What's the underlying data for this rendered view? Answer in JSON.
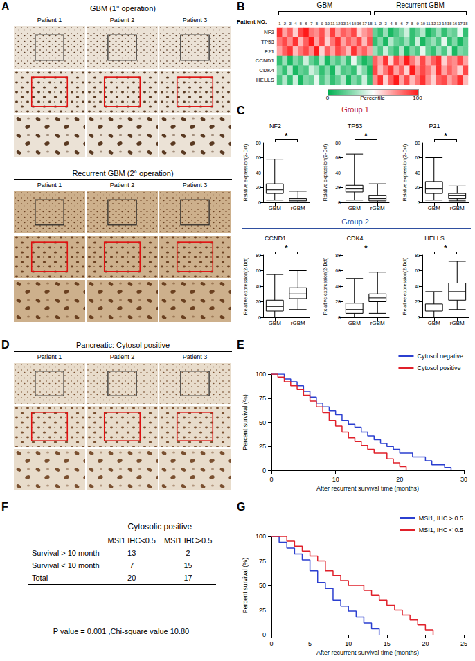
{
  "panel_labels": [
    "A",
    "B",
    "C",
    "D",
    "E",
    "F",
    "G"
  ],
  "panel_A": {
    "sections": [
      {
        "title": "GBM (1° operation)",
        "patients": [
          "Patient 1",
          "Patient 2",
          "Patient 3"
        ]
      },
      {
        "title": "Recurrent GBM (2° operation)",
        "patients": [
          "Patient 1",
          "Patient 2",
          "Patient 3"
        ]
      }
    ]
  },
  "panel_C_groups": [
    {
      "label": "Group 1",
      "color": "#c0202a"
    },
    {
      "label": "Group 2",
      "color": "#2f4fa0"
    }
  ],
  "panel_D": {
    "title": "Pancreatic: Cytosol positive",
    "patients": [
      "Patient 1",
      "Patient 2",
      "Patient 3"
    ]
  },
  "panel_F": {
    "title": "Cytosolic positive",
    "columns": [
      "MSI1 IHC<0.5",
      "MSI1 IHC>0.5"
    ],
    "rows": [
      {
        "label": "Survival > 10 month",
        "cells": [
          13,
          2
        ]
      },
      {
        "label": "Survival < 10 month",
        "cells": [
          7,
          15
        ]
      },
      {
        "label": "Total",
        "cells": [
          20,
          17
        ]
      }
    ],
    "footer": "P value = 0.001 ,Chi-square value 10.80"
  },
  "chart_data": [
    {
      "type": "heatmap",
      "row_label": "Patient NO.",
      "column_groups": [
        "GBM",
        "Recurrent GBM"
      ],
      "categories": [
        "1",
        "2",
        "3",
        "4",
        "5",
        "6",
        "7",
        "8",
        "9",
        "10",
        "11",
        "12",
        "13",
        "14",
        "15",
        "16",
        "17",
        "18",
        "1",
        "2",
        "3",
        "4",
        "5",
        "6",
        "7",
        "8",
        "9",
        "10",
        "11",
        "12",
        "13",
        "14",
        "15",
        "16",
        "17",
        "18"
      ],
      "rows": [
        "NF2",
        "TP53",
        "P21",
        "CCND1",
        "CDK4",
        "HELLS"
      ],
      "cells": [
        [
          95,
          70,
          85,
          60,
          90,
          100,
          80,
          75,
          88,
          65,
          92,
          70,
          85,
          78,
          90,
          60,
          72,
          80,
          20,
          10,
          30,
          5,
          15,
          25,
          40,
          10,
          20,
          35,
          5,
          15,
          30,
          10,
          25,
          20,
          45,
          10
        ],
        [
          80,
          90,
          75,
          95,
          65,
          85,
          100,
          70,
          90,
          60,
          80,
          95,
          70,
          85,
          75,
          90,
          65,
          88,
          10,
          25,
          5,
          35,
          20,
          15,
          30,
          10,
          40,
          5,
          20,
          30,
          15,
          45,
          10,
          25,
          5,
          20
        ],
        [
          70,
          85,
          95,
          65,
          80,
          90,
          75,
          100,
          60,
          85,
          70,
          90,
          80,
          65,
          95,
          75,
          85,
          70,
          30,
          15,
          40,
          20,
          10,
          35,
          5,
          25,
          15,
          45,
          20,
          10,
          30,
          15,
          40,
          5,
          25,
          20
        ],
        [
          10,
          30,
          5,
          25,
          15,
          40,
          20,
          10,
          35,
          5,
          25,
          15,
          30,
          10,
          45,
          20,
          5,
          15,
          85,
          70,
          95,
          60,
          90,
          75,
          100,
          80,
          65,
          90,
          70,
          85,
          95,
          60,
          80,
          75,
          90,
          70
        ],
        [
          25,
          10,
          35,
          5,
          20,
          15,
          40,
          30,
          10,
          25,
          5,
          35,
          15,
          20,
          10,
          40,
          25,
          5,
          90,
          65,
          80,
          95,
          70,
          85,
          60,
          100,
          75,
          90,
          80,
          65,
          95,
          70,
          85,
          75,
          60,
          90
        ],
        [
          15,
          35,
          10,
          40,
          5,
          25,
          20,
          45,
          15,
          30,
          10,
          20,
          35,
          5,
          25,
          15,
          40,
          10,
          75,
          95,
          60,
          85,
          100,
          70,
          90,
          65,
          80,
          95,
          75,
          60,
          85,
          90,
          70,
          80,
          95,
          65
        ]
      ],
      "colorbar": {
        "label": "Percentile",
        "range": [
          0,
          100
        ],
        "ticks": [
          0,
          100
        ]
      }
    },
    {
      "type": "boxplot",
      "title": "NF2",
      "ylabel": "Relative expression(2-Dct)",
      "categories": [
        "GBM",
        "rGBM"
      ],
      "values": [
        [
          3,
          12,
          17,
          25,
          58
        ],
        [
          0,
          2,
          3,
          5,
          15
        ]
      ],
      "ylim": [
        0,
        80
      ],
      "yticks": [
        0,
        20,
        40,
        60,
        80
      ],
      "annotations": [
        "*"
      ]
    },
    {
      "type": "boxplot",
      "title": "TP53",
      "ylabel": "Relative expression(2-Dct)",
      "categories": [
        "GBM",
        "rGBM"
      ],
      "values": [
        [
          3,
          14,
          18,
          23,
          65
        ],
        [
          0,
          2,
          5,
          9,
          25
        ]
      ],
      "ylim": [
        0,
        80
      ],
      "yticks": [
        0,
        20,
        40,
        60,
        80
      ],
      "annotations": [
        "*"
      ]
    },
    {
      "type": "boxplot",
      "title": "P21",
      "ylabel": "Relative expression(2-Dct)",
      "categories": [
        "GBM",
        "rGBM"
      ],
      "values": [
        [
          3,
          12,
          18,
          28,
          60
        ],
        [
          2,
          5,
          9,
          12,
          22
        ]
      ],
      "ylim": [
        0,
        80
      ],
      "yticks": [
        0,
        20,
        40,
        60,
        80
      ],
      "annotations": [
        "*"
      ]
    },
    {
      "type": "boxplot",
      "title": "CCND1",
      "ylabel": "Relative expression(2-Dct)",
      "categories": [
        "GBM",
        "rGBM"
      ],
      "values": [
        [
          0,
          8,
          14,
          22,
          55
        ],
        [
          10,
          24,
          30,
          38,
          60
        ]
      ],
      "ylim": [
        0,
        80
      ],
      "yticks": [
        0,
        20,
        40,
        60,
        80
      ],
      "annotations": [
        "*"
      ]
    },
    {
      "type": "boxplot",
      "title": "CDK4",
      "ylabel": "Relative expression(2-Dct)",
      "categories": [
        "GBM",
        "rGBM"
      ],
      "values": [
        [
          0,
          5,
          10,
          18,
          50
        ],
        [
          5,
          20,
          25,
          30,
          58
        ]
      ],
      "ylim": [
        0,
        80
      ],
      "yticks": [
        0,
        20,
        40,
        60,
        80
      ],
      "annotations": [
        "*"
      ]
    },
    {
      "type": "boxplot",
      "title": "HELLS",
      "ylabel": "Relative expression(2-Dct)",
      "categories": [
        "GBM",
        "rGBM"
      ],
      "values": [
        [
          0,
          8,
          12,
          17,
          33
        ],
        [
          10,
          22,
          33,
          44,
          72
        ]
      ],
      "ylim": [
        0,
        80
      ],
      "yticks": [
        0,
        20,
        40,
        60,
        80
      ],
      "annotations": [
        "*"
      ]
    },
    {
      "type": "line",
      "line_style": "step",
      "legend": "upper right",
      "xlabel": "After recurrent survival time (months)",
      "ylabel": "Percent survival (%)",
      "xlim": [
        0,
        30
      ],
      "xticks": [
        0,
        10,
        20,
        30
      ],
      "ylim": [
        0,
        100
      ],
      "yticks": [
        0,
        25,
        50,
        75,
        100
      ],
      "series": [
        {
          "name": "Cytosol negative",
          "color": "#2b3fd0",
          "x": [
            0,
            2,
            3,
            4,
            5,
            6,
            7,
            8,
            9,
            10,
            11,
            12,
            13,
            14,
            15,
            16,
            17,
            18,
            19,
            20,
            22,
            24,
            25,
            27,
            28
          ],
          "values": [
            100,
            95,
            92,
            88,
            82,
            76,
            70,
            66,
            62,
            58,
            52,
            48,
            45,
            40,
            36,
            32,
            28,
            25,
            22,
            18,
            14,
            10,
            6,
            3,
            0
          ]
        },
        {
          "name": "Cytosol positive",
          "color": "#e0202a",
          "x": [
            0,
            1,
            2,
            3,
            4,
            5,
            6,
            7,
            8,
            9,
            10,
            11,
            12,
            13,
            14,
            15,
            16,
            18,
            19,
            20,
            21
          ],
          "values": [
            100,
            97,
            92,
            88,
            84,
            78,
            72,
            66,
            60,
            52,
            46,
            40,
            34,
            30,
            26,
            22,
            18,
            12,
            8,
            4,
            0
          ]
        }
      ]
    },
    {
      "type": "line",
      "line_style": "step",
      "legend": "upper right",
      "xlabel": "After recurrent survival time (months)",
      "ylabel": "Percent survival (%)",
      "xlim": [
        0,
        25
      ],
      "xticks": [
        0,
        5,
        10,
        15,
        20,
        25
      ],
      "ylim": [
        0,
        100
      ],
      "yticks": [
        0,
        25,
        50,
        75,
        100
      ],
      "series": [
        {
          "name": "MSI1, IHC > 0.5",
          "color": "#2b3fd0",
          "x": [
            0,
            1,
            2,
            3,
            4,
            5,
            6,
            7,
            8,
            9,
            10,
            11,
            12,
            13,
            14
          ],
          "values": [
            100,
            94,
            88,
            82,
            76,
            65,
            53,
            47,
            35,
            29,
            24,
            18,
            12,
            6,
            0
          ]
        },
        {
          "name": "MSI1, IHC < 0.5",
          "color": "#e0202a",
          "x": [
            0,
            2,
            3,
            4,
            5,
            6,
            7,
            8,
            9,
            10,
            12,
            13,
            14,
            15,
            16,
            17,
            18,
            19,
            20,
            21
          ],
          "values": [
            100,
            95,
            90,
            85,
            80,
            75,
            65,
            60,
            55,
            50,
            45,
            40,
            35,
            30,
            25,
            20,
            15,
            10,
            5,
            0
          ]
        }
      ]
    }
  ]
}
